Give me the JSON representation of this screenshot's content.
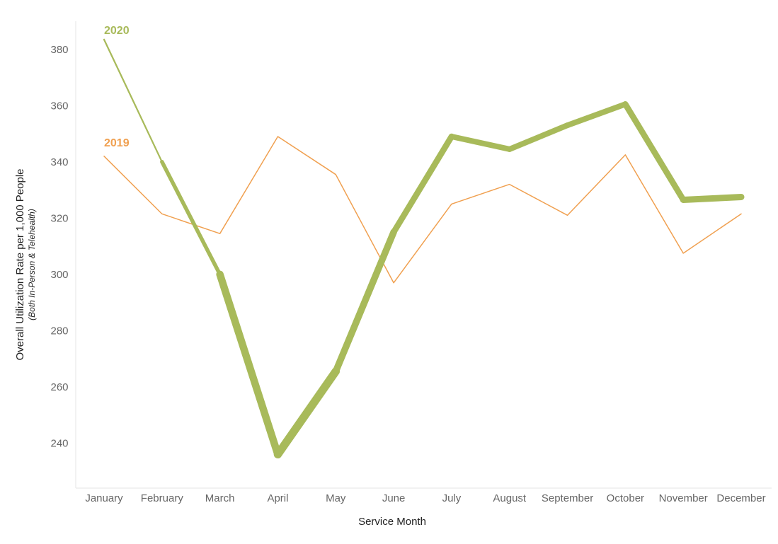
{
  "chart_data": {
    "type": "line",
    "title": "",
    "xlabel": "Service Month",
    "ylabel": "Overall Utilization Rate per 1,000 People",
    "ylabel_sub": "(Both In-Person & Telehealth)",
    "categories": [
      "January",
      "February",
      "March",
      "April",
      "May",
      "June",
      "July",
      "August",
      "September",
      "October",
      "November",
      "December"
    ],
    "yticks": [
      240,
      260,
      280,
      300,
      320,
      340,
      360,
      380
    ],
    "ylim": [
      224,
      390
    ],
    "grid": false,
    "series": [
      {
        "name": "2019",
        "color": "#F0A050",
        "values": [
          342,
          321.5,
          314.5,
          349,
          335.5,
          297,
          325,
          332,
          321,
          342.5,
          307.5,
          321.5
        ]
      },
      {
        "name": "2020",
        "color": "#A8BA5A",
        "values": [
          383.5,
          340,
          300,
          236,
          265.5,
          315,
          349,
          344.5,
          353,
          360.5,
          326.5,
          327.5
        ]
      }
    ]
  }
}
